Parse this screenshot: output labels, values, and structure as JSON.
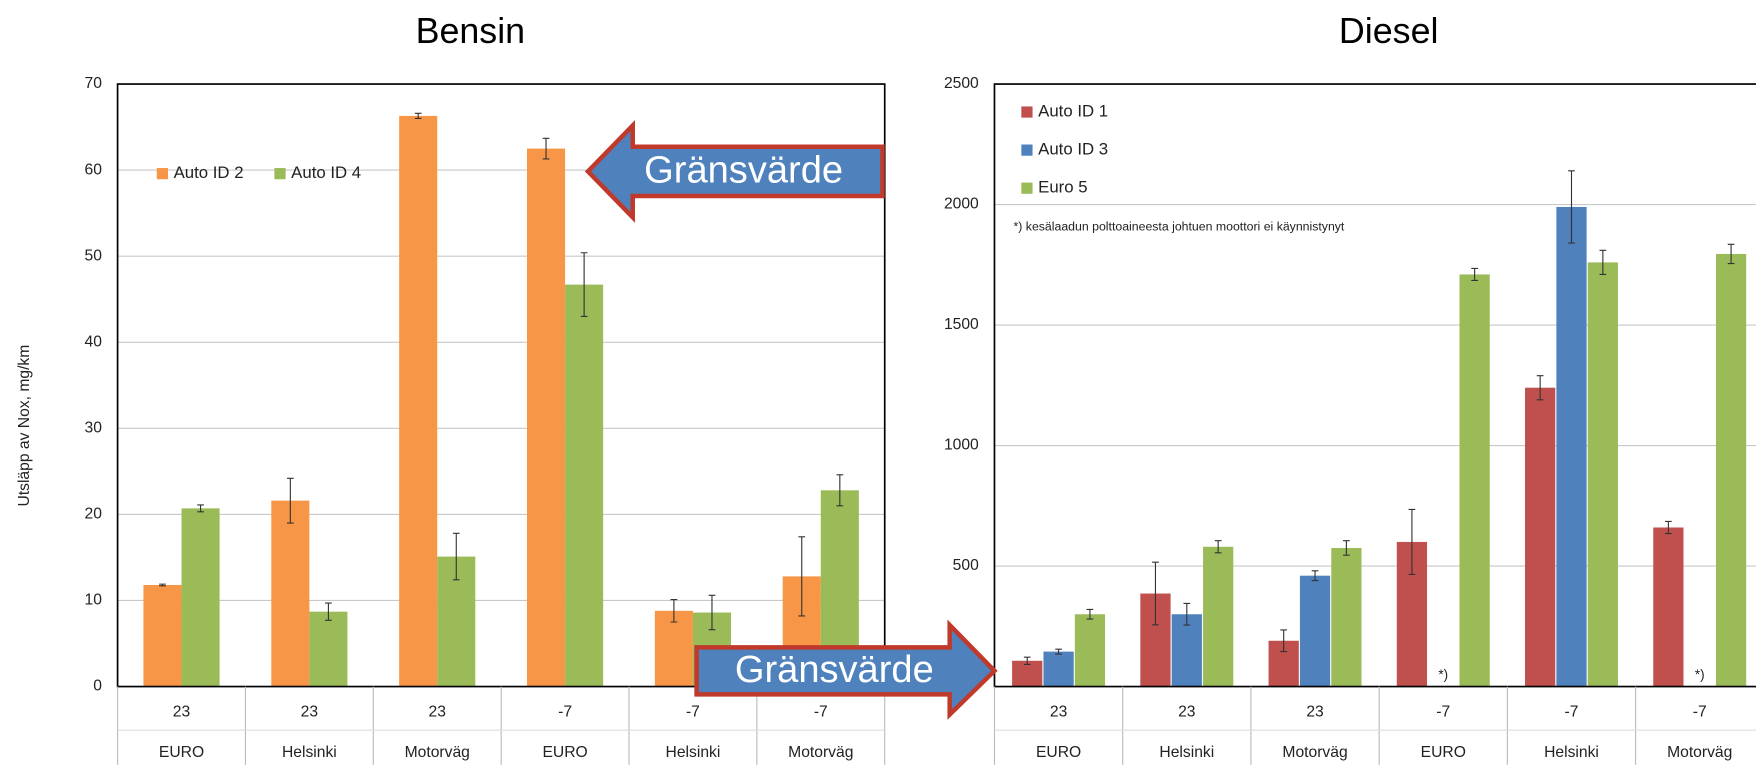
{
  "ylabel": "Utsläpp av Nox, mg/km",
  "annotations": [
    "Gränsvärde",
    "Gränsvärde"
  ],
  "chart_data": [
    {
      "type": "bar",
      "title": "Bensin",
      "categories": [
        "23",
        "23",
        "23",
        "-7",
        "-7",
        "-7"
      ],
      "category_groups": [
        "EURO",
        "Helsinki",
        "Motorväg",
        "EURO",
        "Helsinki",
        "Motorväg"
      ],
      "series": [
        {
          "name": "Auto ID 2",
          "color": "#f79646",
          "values": [
            11.8,
            21.6,
            66.3,
            62.5,
            8.8,
            12.8
          ],
          "errors": [
            0.1,
            2.6,
            0.3,
            1.2,
            1.3,
            4.6
          ]
        },
        {
          "name": "Auto ID 4",
          "color": "#9bbb59",
          "values": [
            20.7,
            8.7,
            15.1,
            46.7,
            8.6,
            22.8
          ],
          "errors": [
            0.4,
            1.0,
            2.7,
            3.7,
            2.0,
            1.8
          ]
        }
      ],
      "ylim": [
        0,
        70
      ],
      "yticks": [
        0,
        10,
        20,
        30,
        40,
        50,
        60,
        70
      ],
      "grid": true,
      "legend": "top-left"
    },
    {
      "type": "bar",
      "title": "Diesel",
      "categories": [
        "23",
        "23",
        "23",
        "-7",
        "-7",
        "-7"
      ],
      "category_groups": [
        "EURO",
        "Helsinki",
        "Motorväg",
        "EURO",
        "Helsinki",
        "Motorväg"
      ],
      "series": [
        {
          "name": "Auto ID 1",
          "color": "#c0504d",
          "values": [
            107,
            386,
            190,
            600,
            1240,
            660
          ],
          "errors": [
            15,
            130,
            45,
            135,
            50,
            25
          ]
        },
        {
          "name": "Auto ID 3",
          "color": "#4f81bd",
          "values": [
            145,
            300,
            460,
            null,
            1990,
            null
          ],
          "errors": [
            10,
            45,
            20,
            null,
            150,
            null
          ]
        },
        {
          "name": "Euro 5",
          "color": "#9bbb59",
          "values": [
            300,
            580,
            575,
            1710,
            1760,
            1795
          ],
          "errors": [
            20,
            25,
            30,
            25,
            50,
            40
          ]
        }
      ],
      "missing_label": "*)",
      "note": "*) kesälaadun polttoaineesta johtuen moottori ei käynnistynyt",
      "ylim": [
        0,
        2500
      ],
      "yticks": [
        0,
        500,
        1000,
        1500,
        2000,
        2500
      ],
      "grid": true,
      "legend": "top-left"
    }
  ]
}
